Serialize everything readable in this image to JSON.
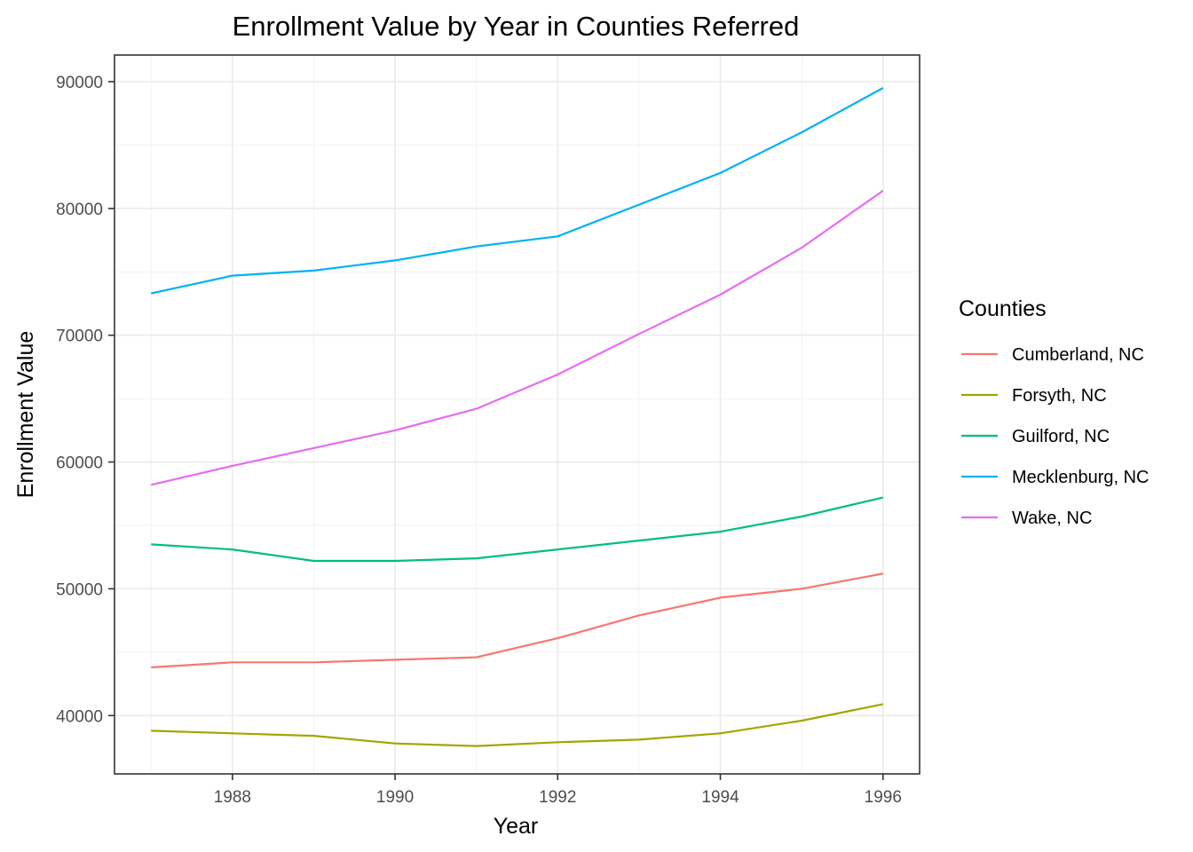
{
  "chart_data": {
    "type": "line",
    "title": "Enrollment Value by Year in Counties Referred",
    "xlabel": "Year",
    "ylabel": "Enrollment Value",
    "x": [
      1987,
      1988,
      1989,
      1990,
      1991,
      1992,
      1993,
      1994,
      1995,
      1996
    ],
    "xlim": [
      1986.55,
      1996.45
    ],
    "ylim": [
      35400,
      92100
    ],
    "x_ticks": [
      1988,
      1990,
      1992,
      1994,
      1996
    ],
    "x_tick_labels": [
      "1988",
      "1990",
      "1992",
      "1994",
      "1996"
    ],
    "y_ticks": [
      40000,
      50000,
      60000,
      70000,
      80000,
      90000
    ],
    "y_tick_labels": [
      "40000",
      "50000",
      "60000",
      "70000",
      "80000",
      "90000"
    ],
    "grid": true,
    "legend_title": "Counties",
    "legend_position": "right",
    "series": [
      {
        "name": "Cumberland, NC",
        "color": "#F8766D",
        "values": [
          43800,
          44200,
          44200,
          44400,
          44600,
          46100,
          47900,
          49300,
          50000,
          51200
        ]
      },
      {
        "name": "Forsyth, NC",
        "color": "#A3A500",
        "values": [
          38800,
          38600,
          38400,
          37800,
          37600,
          37900,
          38100,
          38600,
          39600,
          40900
        ]
      },
      {
        "name": "Guilford, NC",
        "color": "#00BF7D",
        "values": [
          53500,
          53100,
          52200,
          52200,
          52400,
          53100,
          53800,
          54500,
          55700,
          57200
        ]
      },
      {
        "name": "Mecklenburg, NC",
        "color": "#00B0F6",
        "values": [
          73300,
          74700,
          75100,
          75900,
          77000,
          77800,
          80300,
          82800,
          86000,
          89500
        ]
      },
      {
        "name": "Wake, NC",
        "color": "#E76BF3",
        "values": [
          58200,
          59700,
          61100,
          62500,
          64200,
          66900,
          70100,
          73200,
          76900,
          81400
        ]
      }
    ]
  }
}
